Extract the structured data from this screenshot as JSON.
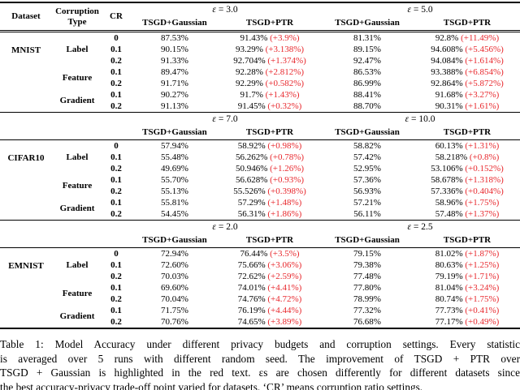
{
  "colors": {
    "improvement_red": "#e8282d"
  },
  "table": {
    "header": {
      "dataset": "Dataset",
      "corruption_lines": [
        "Corruption",
        "Type"
      ],
      "cr": "CR"
    },
    "epsilon_symbol": "ε",
    "method_headers": [
      "TSGD+Gaussian",
      "TSGD+PTR"
    ],
    "sections": [
      {
        "dataset": "MNIST",
        "epsilons": [
          "3.0",
          "5.0"
        ],
        "groups": [
          {
            "type": "Label",
            "rows": [
              {
                "cr": "0",
                "g1": "87.53%",
                "p1": "91.43%",
                "i1": "(+3.9%)",
                "g2": "81.31%",
                "p2": "92.8%",
                "i2": "(+11.49%)"
              },
              {
                "cr": "0.1",
                "g1": "90.15%",
                "p1": "93.29%",
                "i1": "(+3.138%)",
                "g2": "89.15%",
                "p2": "94.608%",
                "i2": "(+5.456%)"
              },
              {
                "cr": "0.2",
                "g1": "91.33%",
                "p1": "92.704%",
                "i1": "(+1.374%)",
                "g2": "92.47%",
                "p2": "94.084%",
                "i2": "(+1.614%)"
              }
            ]
          },
          {
            "type": "Feature",
            "rows": [
              {
                "cr": "0.1",
                "g1": "89.47%",
                "p1": "92.28%",
                "i1": "(+2.812%)",
                "g2": "86.53%",
                "p2": "93.388%",
                "i2": "(+6.854%)"
              },
              {
                "cr": "0.2",
                "g1": "91.71%",
                "p1": "92.29%",
                "i1": "(+0.582%)",
                "g2": "86.99%",
                "p2": "92.864%",
                "i2": "(+5.872%)"
              }
            ]
          },
          {
            "type": "Gradient",
            "rows": [
              {
                "cr": "0.1",
                "g1": "90.27%",
                "p1": "91.7%",
                "i1": "(+1.43%)",
                "g2": "88.41%",
                "p2": "91.68%",
                "i2": "(+3.27%)"
              },
              {
                "cr": "0.2",
                "g1": "91.13%",
                "p1": "91.45%",
                "i1": "(+0.32%)",
                "g2": "88.70%",
                "p2": "90.31%",
                "i2": "(+1.61%)"
              }
            ]
          }
        ]
      },
      {
        "dataset": "CIFAR10",
        "epsilons": [
          "7.0",
          "10.0"
        ],
        "groups": [
          {
            "type": "Label",
            "rows": [
              {
                "cr": "0",
                "g1": "57.94%",
                "p1": "58.92%",
                "i1": "(+0.98%)",
                "g2": "58.82%",
                "p2": "60.13%",
                "i2": "(+1.31%)"
              },
              {
                "cr": "0.1",
                "g1": "55.48%",
                "p1": "56.262%",
                "i1": "(+0.78%)",
                "g2": "57.42%",
                "p2": "58.218%",
                "i2": "(+0.8%)"
              },
              {
                "cr": "0.2",
                "g1": "49.69%",
                "p1": "50.946%",
                "i1": "(+1.26%)",
                "g2": "52.95%",
                "p2": "53.106%",
                "i2": "(+0.152%)"
              }
            ]
          },
          {
            "type": "Feature",
            "rows": [
              {
                "cr": "0.1",
                "g1": "55.70%",
                "p1": "56.628%",
                "i1": "(+0.93%)",
                "g2": "57.36%",
                "p2": "58.678%",
                "i2": "(+1.318%)"
              },
              {
                "cr": "0.2",
                "g1": "55.13%",
                "p1": "55.526%",
                "i1": "(+0.398%)",
                "g2": "56.93%",
                "p2": "57.336%",
                "i2": "(+0.404%)"
              }
            ]
          },
          {
            "type": "Gradient",
            "rows": [
              {
                "cr": "0.1",
                "g1": "55.81%",
                "p1": "57.29%",
                "i1": "(+1.48%)",
                "g2": "57.21%",
                "p2": "58.96%",
                "i2": "(+1.75%)"
              },
              {
                "cr": "0.2",
                "g1": "54.45%",
                "p1": "56.31%",
                "i1": "(+1.86%)",
                "g2": "56.11%",
                "p2": "57.48%",
                "i2": "(+1.37%)"
              }
            ]
          }
        ]
      },
      {
        "dataset": "EMNIST",
        "epsilons": [
          "2.0",
          "2.5"
        ],
        "groups": [
          {
            "type": "Label",
            "rows": [
              {
                "cr": "0",
                "g1": "72.94%",
                "p1": "76.44%",
                "i1": "(+3.5%)",
                "g2": "79.15%",
                "p2": "81.02%",
                "i2": "(+1.87%)"
              },
              {
                "cr": "0.1",
                "g1": "72.60%",
                "p1": "75.66%",
                "i1": "(+3.06%)",
                "g2": "79.38%",
                "p2": "80.63%",
                "i2": "(+1.25%)"
              },
              {
                "cr": "0.2",
                "g1": "70.03%",
                "p1": "72.62%",
                "i1": "(+2.59%)",
                "g2": "77.48%",
                "p2": "79.19%",
                "i2": "(+1.71%)"
              }
            ]
          },
          {
            "type": "Feature",
            "rows": [
              {
                "cr": "0.1",
                "g1": "69.60%",
                "p1": "74.01%",
                "i1": "(+4.41%)",
                "g2": "77.80%",
                "p2": "81.04%",
                "i2": "(+3.24%)"
              },
              {
                "cr": "0.2",
                "g1": "70.04%",
                "p1": "74.76%",
                "i1": "(+4.72%)",
                "g2": "78.99%",
                "p2": "80.74%",
                "i2": "(+1.75%)"
              }
            ]
          },
          {
            "type": "Gradient",
            "rows": [
              {
                "cr": "0.1",
                "g1": "71.75%",
                "p1": "76.19%",
                "i1": "(+4.44%)",
                "g2": "77.32%",
                "p2": "77.73%",
                "i2": "(+0.41%)"
              },
              {
                "cr": "0.2",
                "g1": "70.76%",
                "p1": "74.65%",
                "i1": "(+3.89%)",
                "g2": "76.68%",
                "p2": "77.17%",
                "i2": "(+0.49%)"
              }
            ]
          }
        ]
      }
    ]
  },
  "caption": {
    "lines": [
      "Table 1: Model Accuracy under different privacy budgets and corruption settings. Every statistic",
      "is averaged over 5 runs with different random seed.  The improvement of TSGD + PTR over",
      "TSGD + Gaussian is highlighted in the red text. εs are chosen differently for different datasets since",
      "the best accuracy-privacy trade-off point varied for datasets. ‘CR’ means corruption ratio settings."
    ]
  }
}
